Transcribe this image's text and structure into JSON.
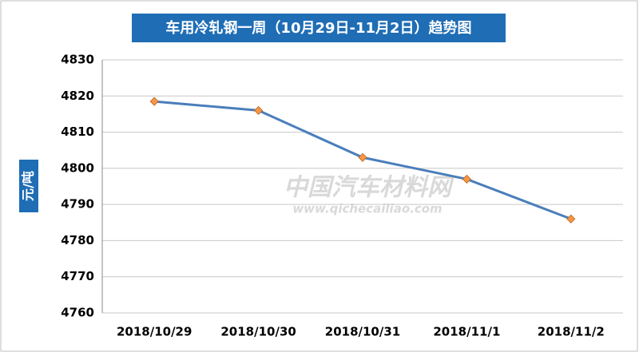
{
  "chart_data": {
    "type": "line",
    "title": "车用冷轧钢一周（10月29日-11月2日）趋势图",
    "y_label": "元/吨",
    "watermark": "中国汽车材料网",
    "watermark_url": "www.qichecailiao.com",
    "categories": [
      "2018/10/29",
      "2018/10/30",
      "2018/10/31",
      "2018/11/1",
      "2018/11/2"
    ],
    "series": [
      {
        "name": "车用冷轧钢",
        "color": "#4a7ebb",
        "marker_color": "#f79646",
        "values": [
          4818.5,
          4816,
          4803,
          4797,
          4786
        ]
      }
    ],
    "ylim": [
      4760,
      4830
    ],
    "yticks": [
      4760,
      4770,
      4780,
      4790,
      4800,
      4810,
      4820,
      4830
    ],
    "grid": true
  }
}
